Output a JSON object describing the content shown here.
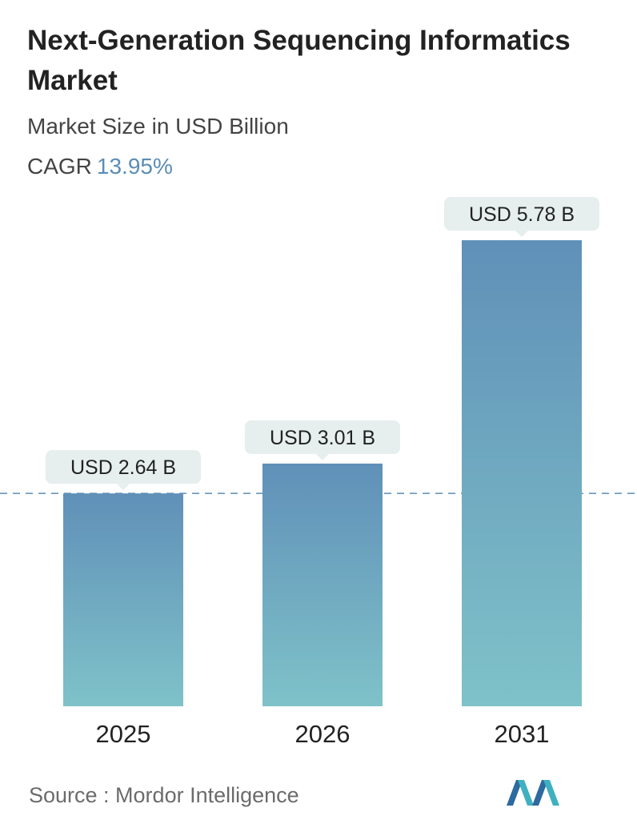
{
  "header": {
    "title": "Next-Generation Sequencing Informatics Market",
    "subtitle": "Market Size in USD Billion",
    "cagr_label": "CAGR",
    "cagr_value": "13.95%"
  },
  "chart_data": {
    "type": "bar",
    "categories": [
      "2025",
      "2026",
      "2031"
    ],
    "values": [
      2.64,
      3.01,
      5.78
    ],
    "value_labels": [
      "USD 2.64 B",
      "USD 3.01 B",
      "USD 5.78 B"
    ],
    "reference_line": 2.64,
    "ylim": [
      0,
      5.78
    ],
    "grid": false,
    "colors": {
      "bar_top": "#6090b8",
      "bar_bottom": "#7fc2c9",
      "callout": "#e6eeee",
      "reference_line": "#5b8db5"
    }
  },
  "footer": {
    "source": "Source :  Mordor Intelligence",
    "logo_icon": "mordor-intelligence-logo-icon"
  }
}
